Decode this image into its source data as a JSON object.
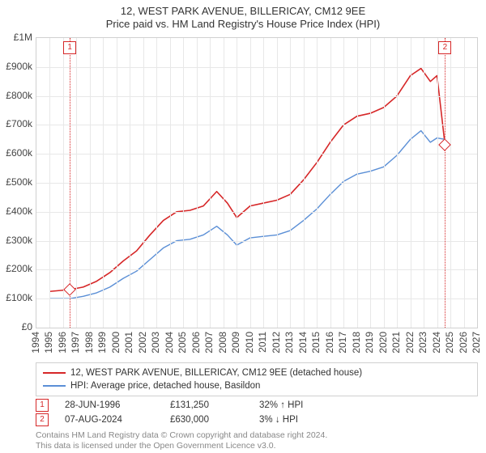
{
  "title": {
    "main": "12, WEST PARK AVENUE, BILLERICAY, CM12 9EE",
    "sub": "Price paid vs. HM Land Registry's House Price Index (HPI)",
    "fontsize": 13,
    "color": "#333333"
  },
  "chart": {
    "type": "line",
    "background_color": "#ffffff",
    "grid_color": "#e8e8e8",
    "border_color": "#d0d0d0",
    "x_axis": {
      "min": 1994,
      "max": 2027,
      "tick_step": 1,
      "labels": [
        "1994",
        "1995",
        "1996",
        "1997",
        "1998",
        "1999",
        "2000",
        "2001",
        "2002",
        "2003",
        "2004",
        "2005",
        "2006",
        "2007",
        "2008",
        "2009",
        "2010",
        "2011",
        "2012",
        "2013",
        "2014",
        "2015",
        "2016",
        "2017",
        "2018",
        "2019",
        "2020",
        "2021",
        "2022",
        "2023",
        "2024",
        "2025",
        "2026",
        "2027"
      ],
      "label_rotation_deg": -90,
      "label_fontsize": 12
    },
    "y_axis": {
      "min": 0,
      "max": 1000000,
      "tick_step": 100000,
      "labels": [
        "£0",
        "£100k",
        "£200k",
        "£300k",
        "£400k",
        "£500k",
        "£600k",
        "£700k",
        "£800k",
        "£900k",
        "£1M"
      ],
      "label_fontsize": 12
    },
    "series": [
      {
        "id": "property",
        "label": "12, WEST PARK AVENUE, BILLERICAY, CM12 9EE (detached house)",
        "color": "#d62728",
        "line_width": 1.6,
        "data": [
          [
            1995.0,
            125000
          ],
          [
            1996.5,
            131250
          ],
          [
            1997.5,
            140000
          ],
          [
            1998.5,
            160000
          ],
          [
            1999.5,
            190000
          ],
          [
            2000.5,
            230000
          ],
          [
            2001.5,
            265000
          ],
          [
            2002.5,
            320000
          ],
          [
            2003.5,
            370000
          ],
          [
            2004.5,
            400000
          ],
          [
            2005.5,
            405000
          ],
          [
            2006.5,
            420000
          ],
          [
            2007.5,
            470000
          ],
          [
            2008.3,
            430000
          ],
          [
            2009.0,
            380000
          ],
          [
            2010.0,
            420000
          ],
          [
            2011.0,
            430000
          ],
          [
            2012.0,
            440000
          ],
          [
            2013.0,
            460000
          ],
          [
            2014.0,
            510000
          ],
          [
            2015.0,
            570000
          ],
          [
            2016.0,
            640000
          ],
          [
            2017.0,
            700000
          ],
          [
            2018.0,
            730000
          ],
          [
            2019.0,
            740000
          ],
          [
            2020.0,
            760000
          ],
          [
            2021.0,
            800000
          ],
          [
            2022.0,
            870000
          ],
          [
            2022.8,
            895000
          ],
          [
            2023.5,
            850000
          ],
          [
            2024.0,
            870000
          ],
          [
            2024.6,
            630000
          ]
        ]
      },
      {
        "id": "hpi",
        "label": "HPI: Average price, detached house, Basildon",
        "color": "#5b8fd6",
        "line_width": 1.4,
        "data": [
          [
            1995.0,
            100000
          ],
          [
            1996.5,
            100000
          ],
          [
            1997.5,
            108000
          ],
          [
            1998.5,
            120000
          ],
          [
            1999.5,
            140000
          ],
          [
            2000.5,
            170000
          ],
          [
            2001.5,
            195000
          ],
          [
            2002.5,
            235000
          ],
          [
            2003.5,
            275000
          ],
          [
            2004.5,
            300000
          ],
          [
            2005.5,
            305000
          ],
          [
            2006.5,
            320000
          ],
          [
            2007.5,
            350000
          ],
          [
            2008.3,
            320000
          ],
          [
            2009.0,
            285000
          ],
          [
            2010.0,
            310000
          ],
          [
            2011.0,
            315000
          ],
          [
            2012.0,
            320000
          ],
          [
            2013.0,
            335000
          ],
          [
            2014.0,
            370000
          ],
          [
            2015.0,
            410000
          ],
          [
            2016.0,
            460000
          ],
          [
            2017.0,
            505000
          ],
          [
            2018.0,
            530000
          ],
          [
            2019.0,
            540000
          ],
          [
            2020.0,
            555000
          ],
          [
            2021.0,
            595000
          ],
          [
            2022.0,
            650000
          ],
          [
            2022.8,
            680000
          ],
          [
            2023.5,
            640000
          ],
          [
            2024.0,
            655000
          ],
          [
            2024.6,
            650000
          ]
        ]
      }
    ],
    "event_markers": [
      {
        "n": "1",
        "year": 1996.5,
        "color": "#d62728",
        "diamond_y": 131250
      },
      {
        "n": "2",
        "year": 2024.6,
        "color": "#d62728",
        "diamond_y": 630000
      }
    ]
  },
  "legend": {
    "border_color": "#d0d0d0",
    "items": [
      {
        "color": "#d62728",
        "label": "12, WEST PARK AVENUE, BILLERICAY, CM12 9EE (detached house)"
      },
      {
        "color": "#5b8fd6",
        "label": "HPI: Average price, detached house, Basildon"
      }
    ]
  },
  "events_table": {
    "rows": [
      {
        "n": "1",
        "color": "#d62728",
        "date": "28-JUN-1996",
        "price": "£131,250",
        "delta": "32% ↑ HPI"
      },
      {
        "n": "2",
        "color": "#d62728",
        "date": "07-AUG-2024",
        "price": "£630,000",
        "delta": "3% ↓ HPI"
      }
    ]
  },
  "footnote": {
    "line1": "Contains HM Land Registry data © Crown copyright and database right 2024.",
    "line2": "This data is licensed under the Open Government Licence v3.0.",
    "color": "#888888"
  }
}
